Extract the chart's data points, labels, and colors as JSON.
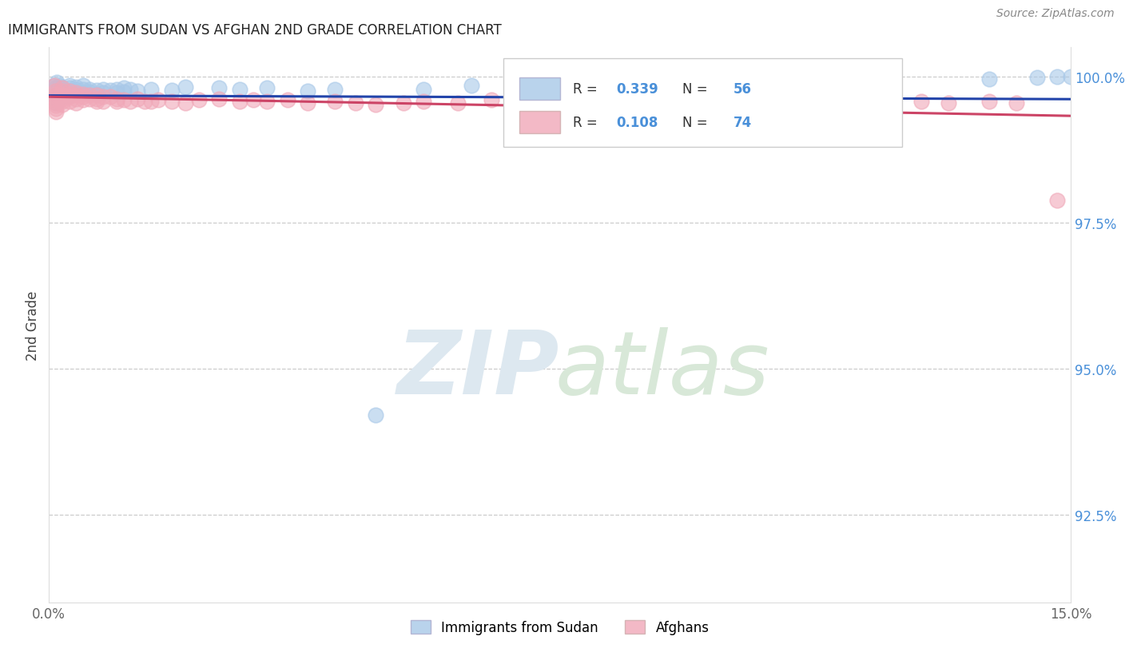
{
  "title": "IMMIGRANTS FROM SUDAN VS AFGHAN 2ND GRADE CORRELATION CHART",
  "source_text": "Source: ZipAtlas.com",
  "ylabel": "2nd Grade",
  "xlim": [
    0.0,
    0.15
  ],
  "ylim": [
    0.91,
    1.005
  ],
  "xtick_labels": [
    "0.0%",
    "15.0%"
  ],
  "ytick_labels": [
    "92.5%",
    "95.0%",
    "97.5%",
    "100.0%"
  ],
  "ytick_values": [
    0.925,
    0.95,
    0.975,
    1.0
  ],
  "legend_sudan_R": "0.339",
  "legend_sudan_N": "56",
  "legend_afghan_R": "0.108",
  "legend_afghan_N": "74",
  "blue_color": "#a8c8e8",
  "pink_color": "#f0a8b8",
  "line_blue": "#2244aa",
  "line_pink": "#cc4466",
  "sudan_x": [
    0.0008,
    0.0009,
    0.001,
    0.001,
    0.001,
    0.001,
    0.0012,
    0.0013,
    0.0015,
    0.002,
    0.002,
    0.002,
    0.002,
    0.003,
    0.003,
    0.003,
    0.003,
    0.004,
    0.004,
    0.004,
    0.005,
    0.005,
    0.005,
    0.006,
    0.006,
    0.007,
    0.007,
    0.008,
    0.008,
    0.009,
    0.01,
    0.01,
    0.011,
    0.011,
    0.012,
    0.013,
    0.015,
    0.018,
    0.02,
    0.025,
    0.028,
    0.032,
    0.038,
    0.042,
    0.048,
    0.055,
    0.062,
    0.073,
    0.082,
    0.098,
    0.108,
    0.122,
    0.138,
    0.145,
    0.148,
    0.15
  ],
  "sudan_y": [
    0.9985,
    0.998,
    0.997,
    0.9965,
    0.996,
    0.9955,
    0.999,
    0.9975,
    0.9985,
    0.998,
    0.9975,
    0.997,
    0.9965,
    0.9985,
    0.998,
    0.9975,
    0.9968,
    0.9982,
    0.9978,
    0.9972,
    0.9985,
    0.9978,
    0.9972,
    0.9978,
    0.9974,
    0.9976,
    0.997,
    0.9978,
    0.9972,
    0.9976,
    0.9978,
    0.9972,
    0.998,
    0.9974,
    0.9978,
    0.9975,
    0.9978,
    0.9976,
    0.9982,
    0.998,
    0.9978,
    0.998,
    0.9975,
    0.9978,
    0.942,
    0.9978,
    0.9985,
    0.992,
    0.9978,
    0.9985,
    0.992,
    0.9988,
    0.9995,
    0.9998,
    1.0,
    1.0
  ],
  "afghan_x": [
    0.0008,
    0.0009,
    0.001,
    0.001,
    0.001,
    0.001,
    0.001,
    0.001,
    0.001,
    0.002,
    0.002,
    0.002,
    0.002,
    0.002,
    0.002,
    0.003,
    0.003,
    0.003,
    0.003,
    0.004,
    0.004,
    0.004,
    0.004,
    0.005,
    0.005,
    0.005,
    0.006,
    0.006,
    0.007,
    0.007,
    0.007,
    0.008,
    0.008,
    0.009,
    0.01,
    0.01,
    0.011,
    0.012,
    0.013,
    0.014,
    0.015,
    0.016,
    0.018,
    0.02,
    0.022,
    0.025,
    0.028,
    0.03,
    0.032,
    0.035,
    0.038,
    0.042,
    0.045,
    0.048,
    0.052,
    0.055,
    0.06,
    0.065,
    0.068,
    0.072,
    0.078,
    0.082,
    0.088,
    0.092,
    0.098,
    0.105,
    0.108,
    0.115,
    0.12,
    0.128,
    0.132,
    0.138,
    0.142,
    0.148
  ],
  "afghan_y": [
    0.9985,
    0.9975,
    0.997,
    0.9965,
    0.996,
    0.9955,
    0.995,
    0.9945,
    0.994,
    0.998,
    0.9975,
    0.9968,
    0.9962,
    0.9958,
    0.9952,
    0.9975,
    0.997,
    0.9965,
    0.9958,
    0.9972,
    0.9968,
    0.9962,
    0.9955,
    0.997,
    0.9965,
    0.996,
    0.9968,
    0.9962,
    0.9968,
    0.9962,
    0.9958,
    0.9965,
    0.9958,
    0.9965,
    0.9962,
    0.9958,
    0.996,
    0.9958,
    0.9962,
    0.9958,
    0.9958,
    0.996,
    0.9958,
    0.9955,
    0.996,
    0.9962,
    0.9958,
    0.996,
    0.9958,
    0.996,
    0.9955,
    0.9958,
    0.9955,
    0.9952,
    0.9955,
    0.9958,
    0.9955,
    0.996,
    0.9958,
    0.9954,
    0.996,
    0.9958,
    0.9955,
    0.9952,
    0.9942,
    0.9955,
    0.9952,
    0.9955,
    0.9954,
    0.9958,
    0.9955,
    0.9958,
    0.9954,
    0.9788
  ]
}
